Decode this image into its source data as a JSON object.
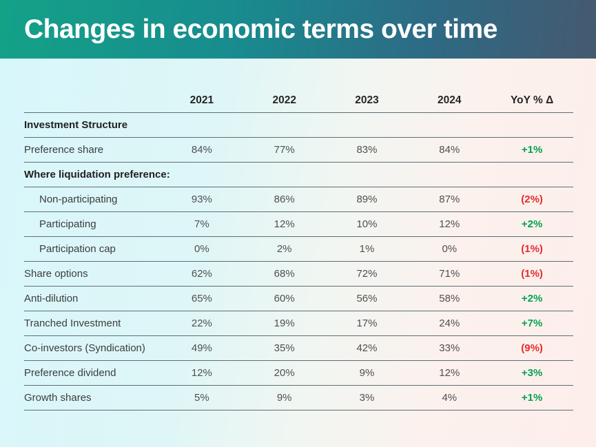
{
  "slide": {
    "title": "Changes in economic terms over time"
  },
  "colors": {
    "titlebar_gradient_left": "#14a287",
    "titlebar_gradient_mid": "#188b8f",
    "titlebar_gradient_right": "#455970",
    "background_left": "#d8f7fb",
    "background_right": "#fdeeea",
    "positive_delta": "#00a24f",
    "negative_delta": "#e52b30",
    "divider_line": "#5d6d74"
  },
  "chart_data": {
    "type": "table",
    "title": "Changes in economic terms over time",
    "columns": [
      "",
      "2021",
      "2022",
      "2023",
      "2024",
      "YoY % Δ"
    ],
    "rows": [
      {
        "label": "Investment Structure",
        "type": "section"
      },
      {
        "label": "Preference share",
        "type": "data",
        "indent": false,
        "values": [
          "84%",
          "77%",
          "83%",
          "84%"
        ],
        "yoy": "+1%",
        "direction": "up"
      },
      {
        "label": "Where liquidation preference:",
        "type": "section"
      },
      {
        "label": "Non-participating",
        "type": "data",
        "indent": true,
        "values": [
          "93%",
          "86%",
          "89%",
          "87%"
        ],
        "yoy": "(2%)",
        "direction": "down"
      },
      {
        "label": "Participating",
        "type": "data",
        "indent": true,
        "values": [
          "7%",
          "12%",
          "10%",
          "12%"
        ],
        "yoy": "+2%",
        "direction": "up"
      },
      {
        "label": "Participation cap",
        "type": "data",
        "indent": true,
        "values": [
          "0%",
          "2%",
          "1%",
          "0%"
        ],
        "yoy": "(1%)",
        "direction": "down"
      },
      {
        "label": "Share options",
        "type": "data",
        "indent": false,
        "values": [
          "62%",
          "68%",
          "72%",
          "71%"
        ],
        "yoy": "(1%)",
        "direction": "down"
      },
      {
        "label": "Anti-dilution",
        "type": "data",
        "indent": false,
        "values": [
          "65%",
          "60%",
          "56%",
          "58%"
        ],
        "yoy": "+2%",
        "direction": "up"
      },
      {
        "label": "Tranched Investment",
        "type": "data",
        "indent": false,
        "values": [
          "22%",
          "19%",
          "17%",
          "24%"
        ],
        "yoy": "+7%",
        "direction": "up"
      },
      {
        "label": "Co-investors (Syndication)",
        "type": "data",
        "indent": false,
        "values": [
          "49%",
          "35%",
          "42%",
          "33%"
        ],
        "yoy": "(9%)",
        "direction": "down"
      },
      {
        "label": "Preference dividend",
        "type": "data",
        "indent": false,
        "values": [
          "12%",
          "20%",
          "9%",
          "12%"
        ],
        "yoy": "+3%",
        "direction": "up"
      },
      {
        "label": "Growth shares",
        "type": "data",
        "indent": false,
        "values": [
          "5%",
          "9%",
          "3%",
          "4%"
        ],
        "yoy": "+1%",
        "direction": "up"
      }
    ]
  }
}
